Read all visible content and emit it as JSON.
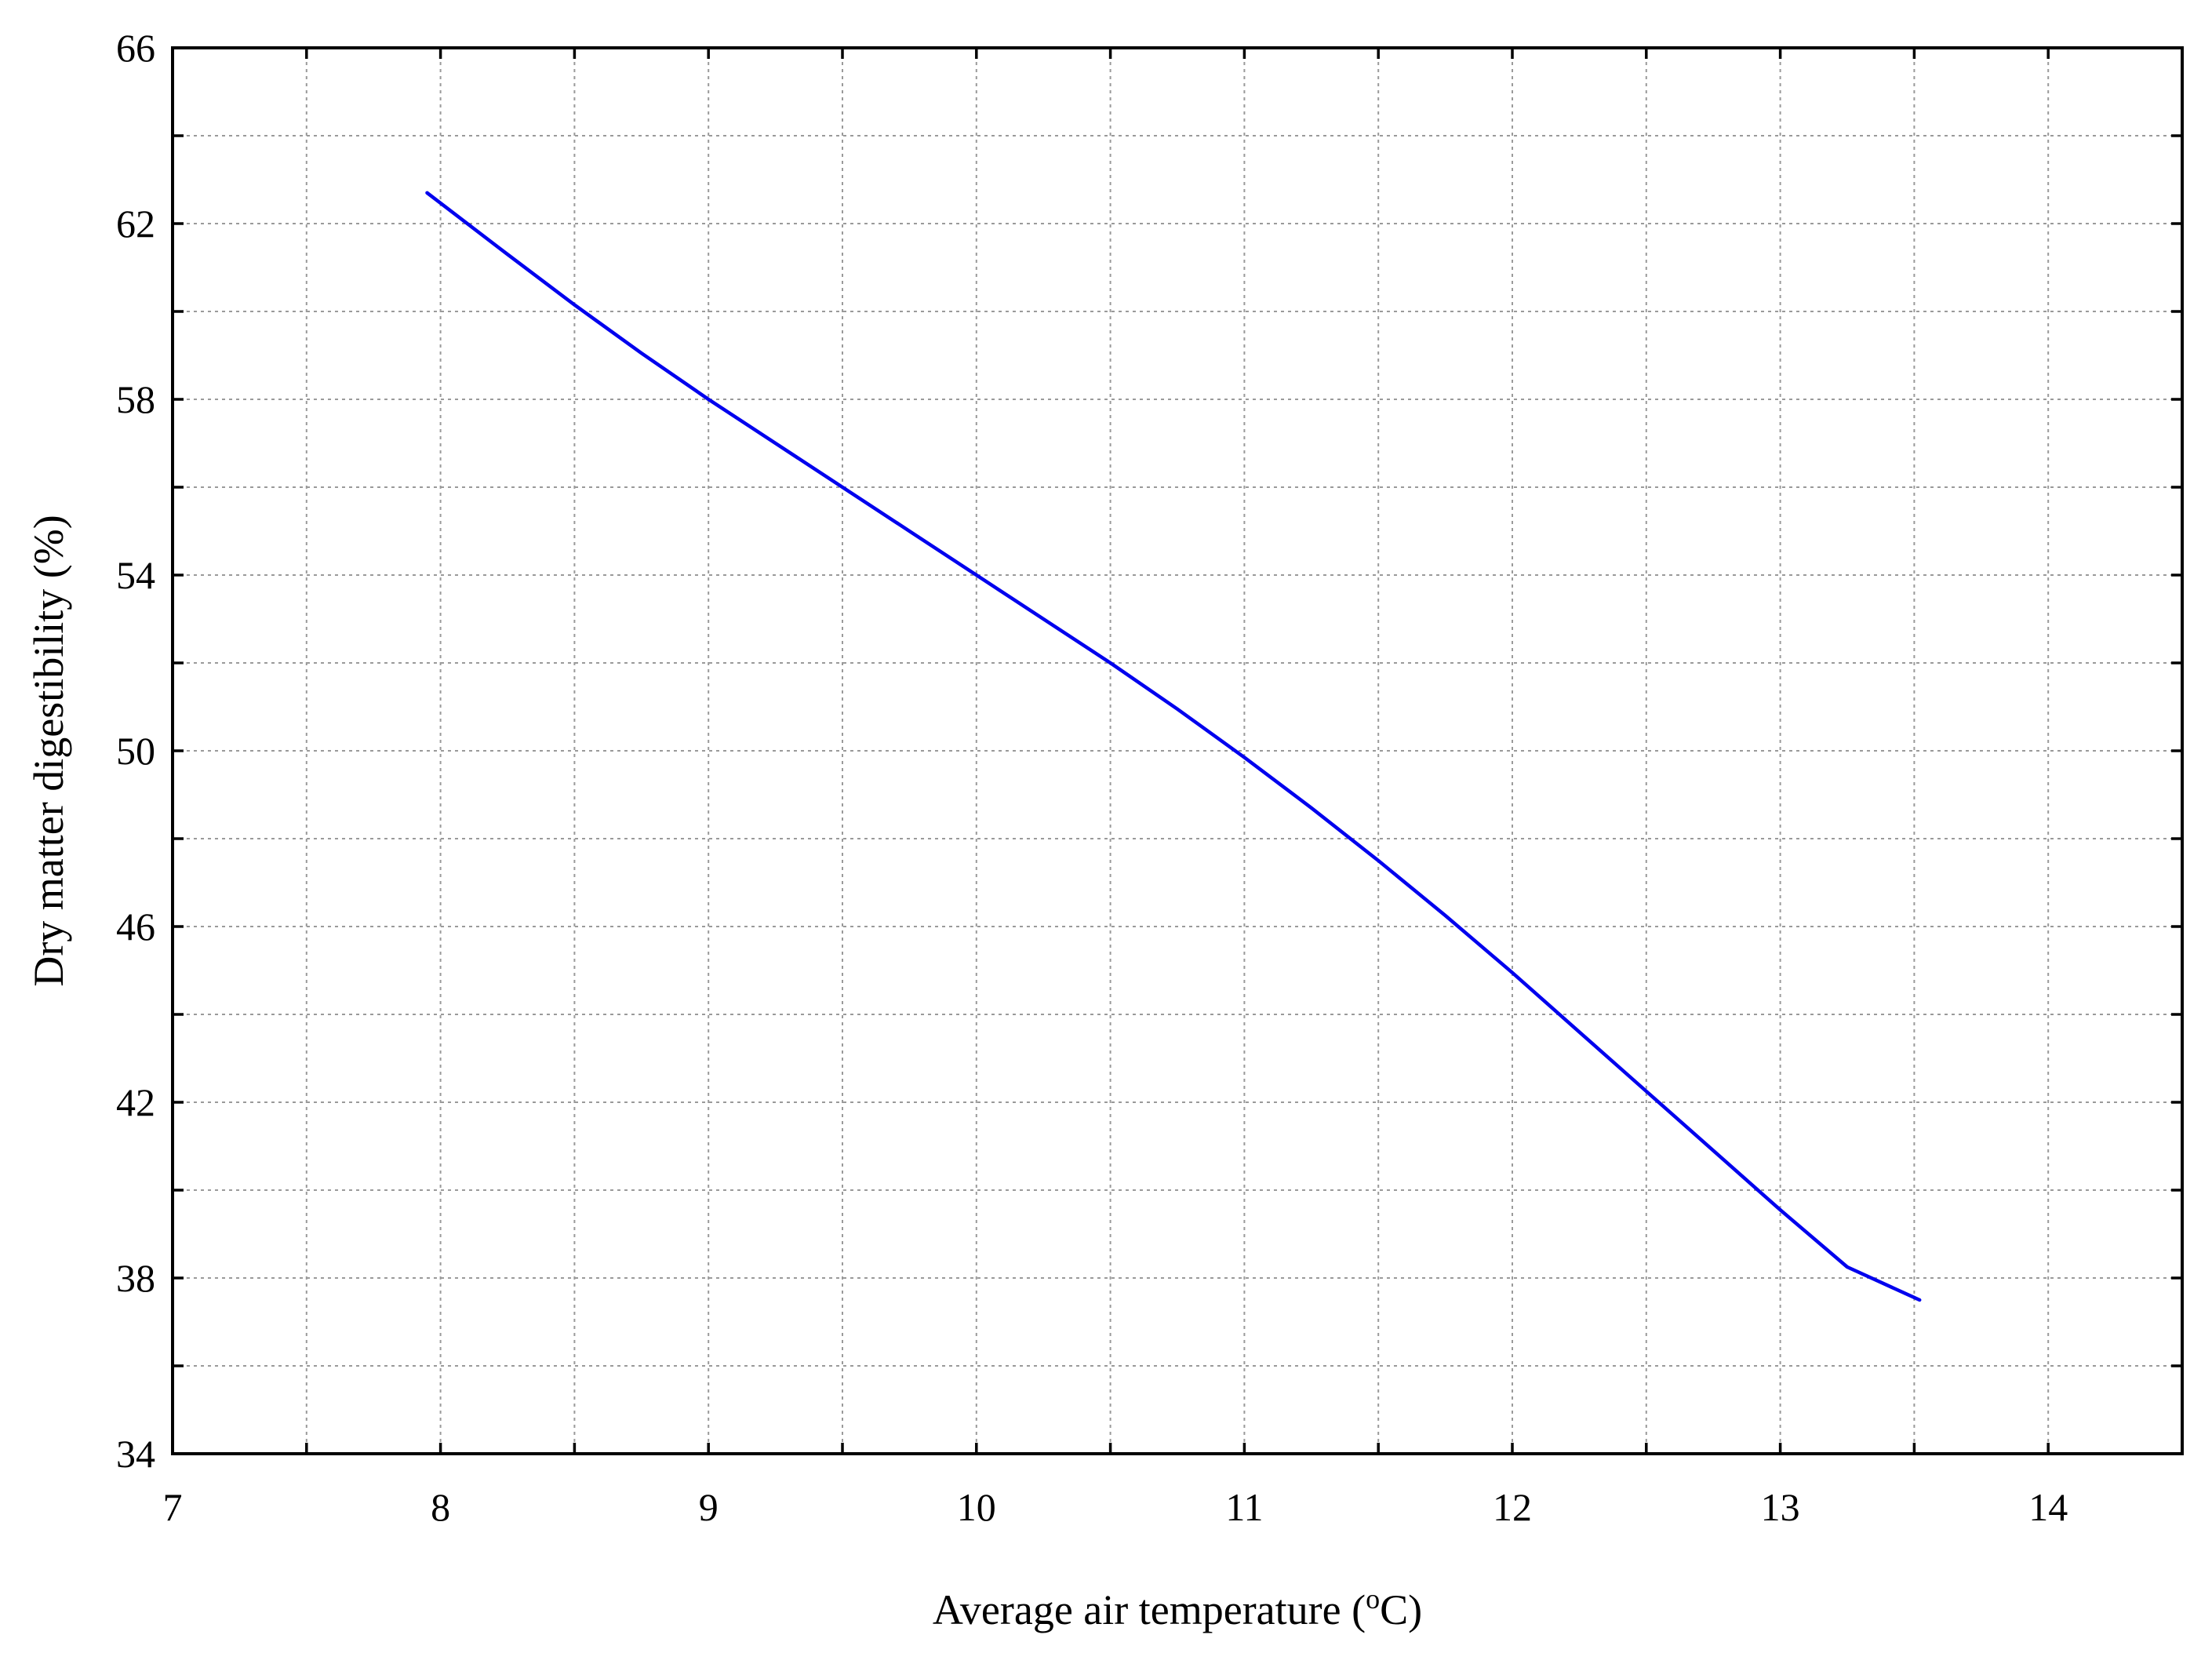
{
  "chart_data": {
    "type": "line",
    "title": "",
    "xlabel": "Average air temperature (",
    "xlabel_sup": "o",
    "xlabel_suffix": "C)",
    "ylabel": "Dry matter digestibility (%)",
    "xlim": [
      7,
      14.5
    ],
    "ylim": [
      34,
      66
    ],
    "xticks": [
      7,
      8,
      9,
      10,
      11,
      12,
      13,
      14
    ],
    "yticks": [
      34,
      38,
      42,
      46,
      50,
      54,
      58,
      62,
      66
    ],
    "x_minor_step": 0.5,
    "y_minor_step": 2,
    "grid": true,
    "series": [
      {
        "color": "#0000ee",
        "x": [
          7.95,
          8.25,
          8.5,
          8.75,
          9.0,
          9.25,
          9.5,
          9.75,
          10.0,
          10.25,
          10.5,
          10.75,
          11.0,
          11.25,
          11.5,
          11.75,
          12.0,
          12.25,
          12.5,
          12.75,
          13.0,
          13.25,
          13.52
        ],
        "y": [
          62.7,
          61.3,
          60.15,
          59.05,
          58.0,
          57.0,
          56.0,
          55.0,
          54.0,
          53.0,
          52.0,
          50.95,
          49.85,
          48.7,
          47.5,
          46.25,
          44.95,
          43.6,
          42.25,
          40.9,
          39.55,
          38.25,
          37.5
        ]
      }
    ]
  }
}
